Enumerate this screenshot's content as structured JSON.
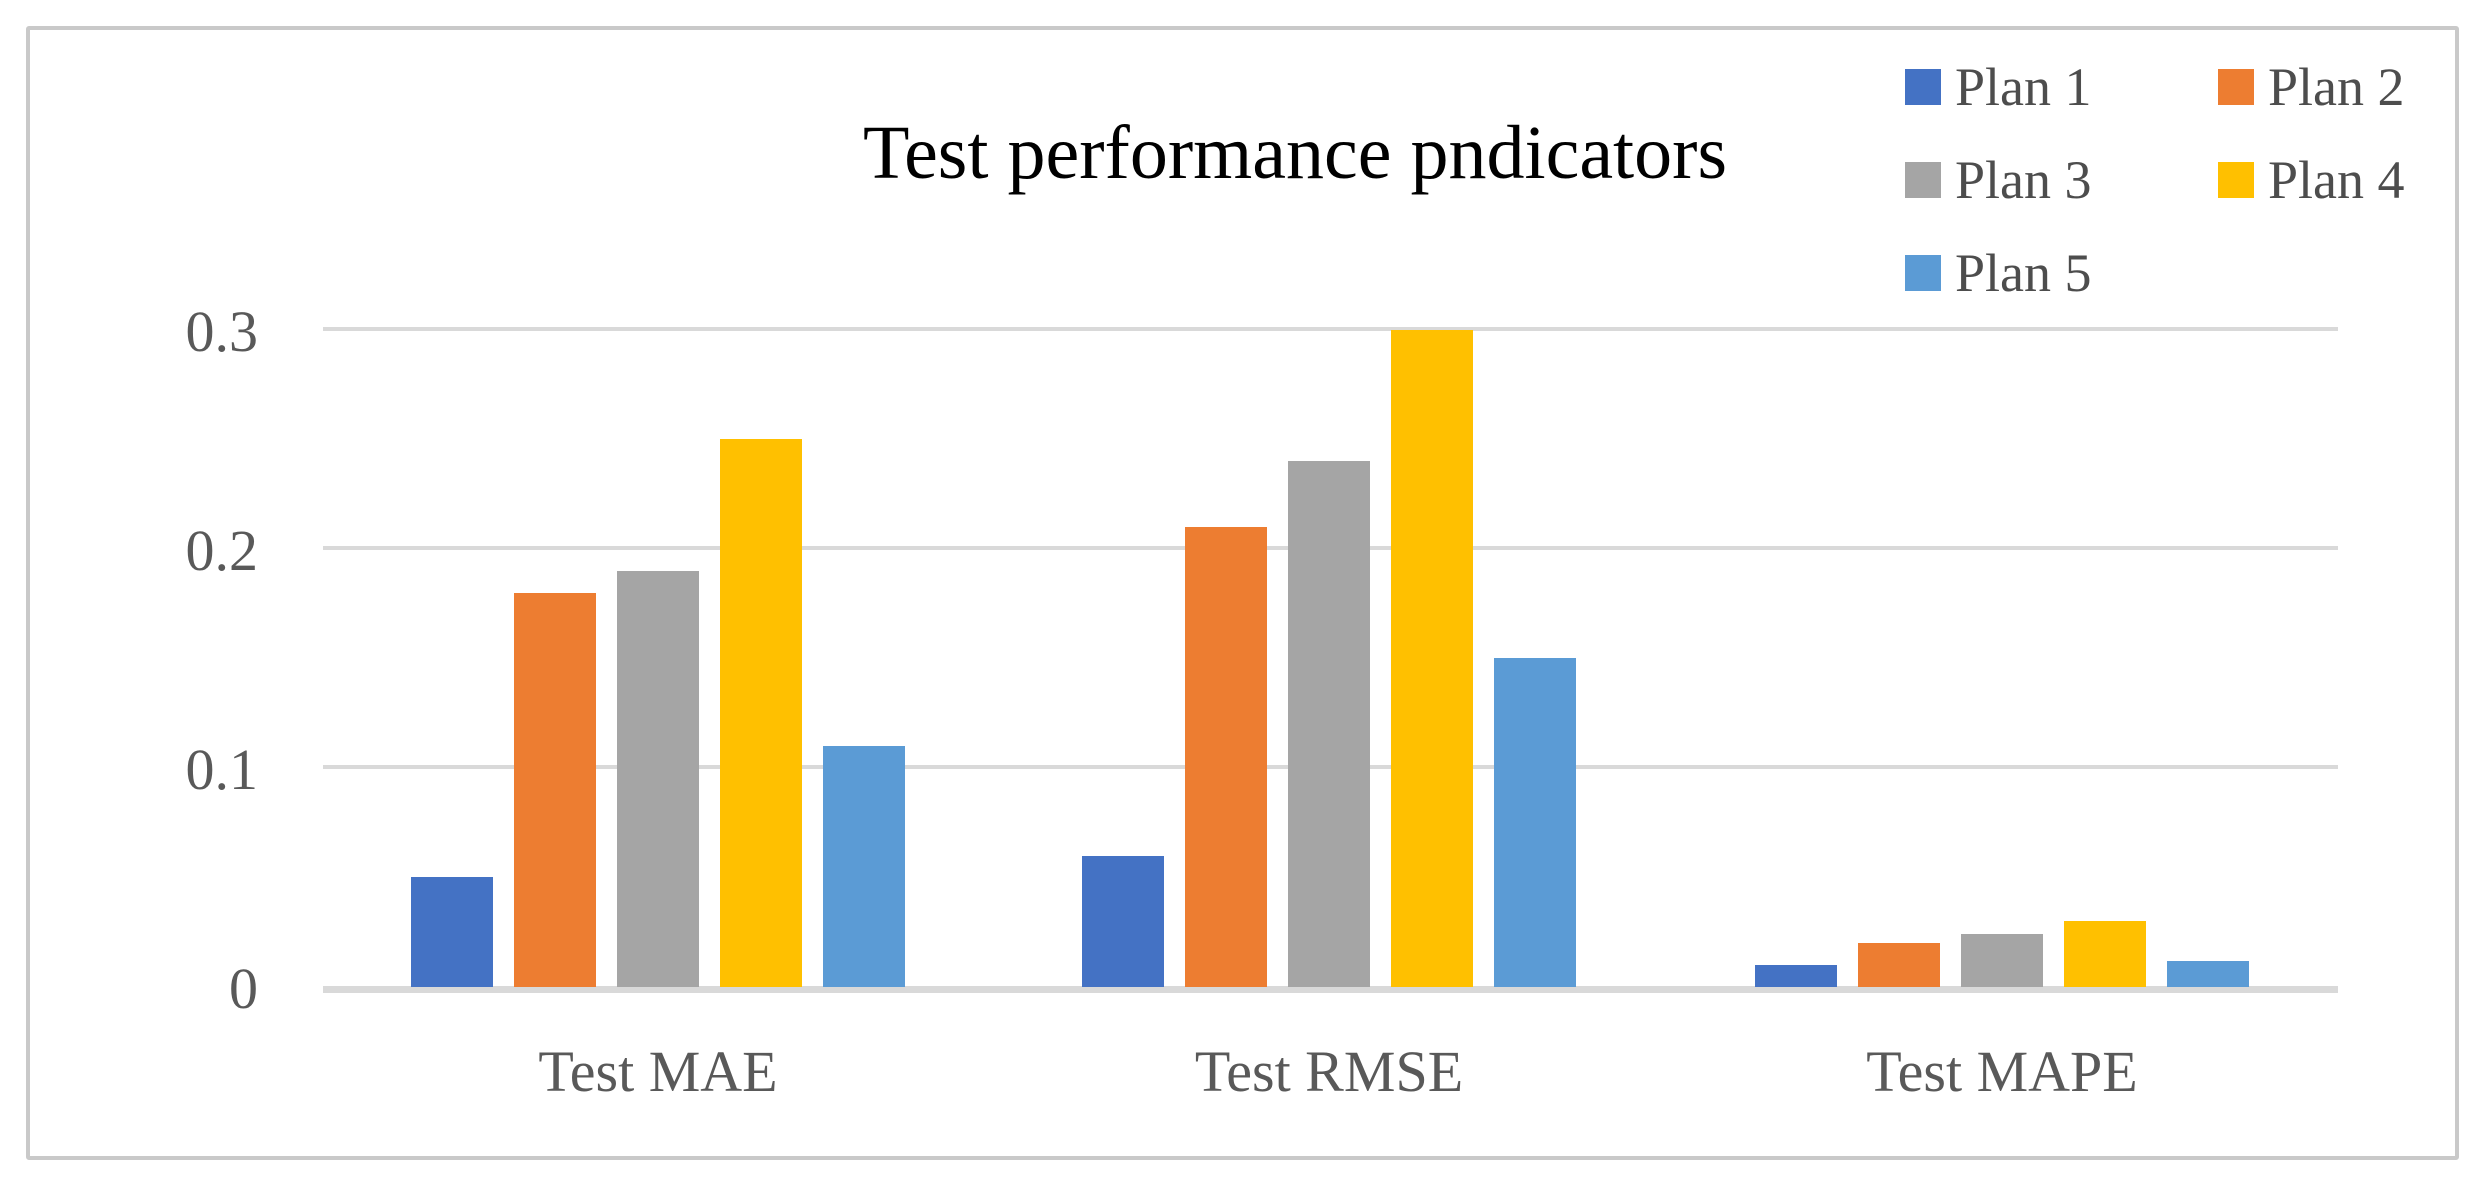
{
  "figure": {
    "title": "Test performance pndicators",
    "background_color": "#ffffff",
    "border_color": "#c9c9c9"
  },
  "chart_data": {
    "type": "bar",
    "title": "Test performance pndicators",
    "categories": [
      "Test MAE",
      "Test RMSE",
      "Test MAPE"
    ],
    "series": [
      {
        "name": "Plan 1",
        "color": "#4472C4",
        "values": [
          0.05,
          0.06,
          0.01
        ]
      },
      {
        "name": "Plan 2",
        "color": "#ED7D31",
        "values": [
          0.18,
          0.21,
          0.02
        ]
      },
      {
        "name": "Plan 3",
        "color": "#A5A5A5",
        "values": [
          0.19,
          0.24,
          0.024
        ]
      },
      {
        "name": "Plan 4",
        "color": "#FFC000",
        "values": [
          0.25,
          0.3,
          0.03
        ]
      },
      {
        "name": "Plan 5",
        "color": "#5B9BD5",
        "values": [
          0.11,
          0.15,
          0.012
        ]
      }
    ],
    "y_axis": {
      "range": [
        0,
        0.3
      ],
      "ticks": [
        0,
        0.1,
        0.2,
        0.3
      ],
      "tick_labels": [
        "0",
        "0.1",
        "0.2",
        "0.3"
      ]
    },
    "grid": true,
    "gridline_color": "#d9d9d9",
    "axis_text_color": "#595959",
    "legend_position": "top-right"
  }
}
